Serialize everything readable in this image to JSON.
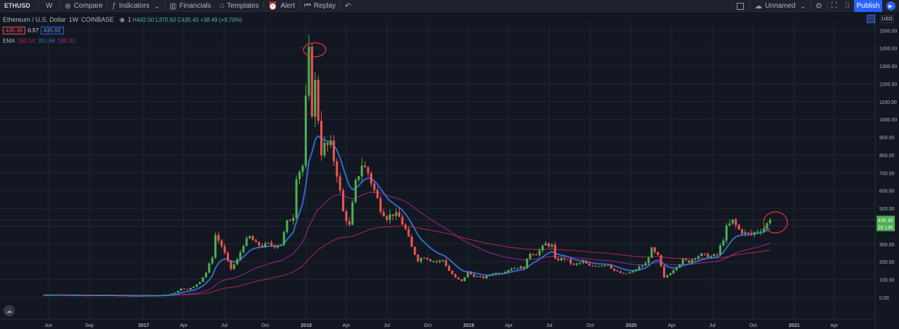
{
  "toolbar": {
    "symbol": "ETHUSD",
    "interval": "W",
    "compare": "Compare",
    "indicators": "Indicators",
    "financials": "Financials",
    "templates": "Templates",
    "alert": "Alert",
    "replay": "Replay",
    "layout_name": "Unnamed",
    "publish": "Publish"
  },
  "legend": {
    "title": "Ethereum / U.S. Dollar",
    "interval": "1W",
    "exchange": "COINBASE",
    "ohlc": "H442.00  L370.50  C435.40  +38.49 (+9.70%)",
    "open_prefix": "1",
    "bid": "435.35",
    "spread": "0.57",
    "ask": "435.92",
    "ema_label": "EMA",
    "ema_values": [
      "260.14",
      "351.68",
      "288.33"
    ]
  },
  "axis": {
    "currency": "USD",
    "last_price": "435.40",
    "countdown": "2d 14h"
  },
  "colors": {
    "up": "#4caf50",
    "down": "#ef5350",
    "ema_blue": "#2e6cc9",
    "ema_purple": "#9c2794",
    "ema_red": "#b02a45",
    "background": "#131722",
    "grid": "#232733",
    "annotation": "#e53935"
  },
  "chart_data": {
    "type": "candlestick",
    "title": "Ethereum / U.S. Dollar 1W COINBASE",
    "ylim": [
      0,
      1500
    ],
    "y_ticks": [
      "0.00",
      "100.00",
      "200.00",
      "300.00",
      "400.00",
      "500.00",
      "600.00",
      "700.00",
      "800.00",
      "900.00",
      "1000.00",
      "1100.00",
      "1200.00",
      "1300.00",
      "1400.00",
      "1500.00"
    ],
    "x_ticks": [
      "Jun",
      "Sep",
      "2017",
      "Apr",
      "Jul",
      "Oct",
      "2018",
      "Apr",
      "Jul",
      "Oct",
      "2019",
      "Apr",
      "Jul",
      "Oct",
      "2020",
      "Apr",
      "Jul",
      "Oct",
      "2021",
      "Apr"
    ],
    "x_tick_bold": [
      "2017",
      "2018",
      "2019",
      "2020",
      "2021"
    ],
    "x_tick_dates": [
      "2016-06-01",
      "2016-09-01",
      "2017-01-01",
      "2017-04-01",
      "2017-07-01",
      "2017-10-01",
      "2018-01-01",
      "2018-04-01",
      "2018-07-01",
      "2018-10-01",
      "2019-01-01",
      "2019-04-01",
      "2019-07-01",
      "2019-10-01",
      "2020-01-01",
      "2020-04-01",
      "2020-07-01",
      "2020-10-01",
      "2021-01-01",
      "2021-04-01"
    ],
    "closes": [
      {
        "date": "2016-05-22",
        "c": 13
      },
      {
        "date": "2016-06-19",
        "c": 14
      },
      {
        "date": "2016-07-24",
        "c": 12
      },
      {
        "date": "2016-08-21",
        "c": 11
      },
      {
        "date": "2016-09-18",
        "c": 12
      },
      {
        "date": "2016-10-16",
        "c": 12
      },
      {
        "date": "2016-11-13",
        "c": 10
      },
      {
        "date": "2016-12-11",
        "c": 8
      },
      {
        "date": "2017-01-08",
        "c": 10
      },
      {
        "date": "2017-02-05",
        "c": 11
      },
      {
        "date": "2017-02-26",
        "c": 16
      },
      {
        "date": "2017-03-12",
        "c": 28
      },
      {
        "date": "2017-03-26",
        "c": 50
      },
      {
        "date": "2017-04-09",
        "c": 45
      },
      {
        "date": "2017-04-23",
        "c": 60
      },
      {
        "date": "2017-05-07",
        "c": 90
      },
      {
        "date": "2017-05-21",
        "c": 140
      },
      {
        "date": "2017-06-04",
        "c": 230
      },
      {
        "date": "2017-06-11",
        "c": 350
      },
      {
        "date": "2017-06-25",
        "c": 290
      },
      {
        "date": "2017-07-09",
        "c": 200
      },
      {
        "date": "2017-07-16",
        "c": 160
      },
      {
        "date": "2017-07-30",
        "c": 210
      },
      {
        "date": "2017-08-13",
        "c": 300
      },
      {
        "date": "2017-08-27",
        "c": 340
      },
      {
        "date": "2017-09-10",
        "c": 300
      },
      {
        "date": "2017-09-24",
        "c": 290
      },
      {
        "date": "2017-10-08",
        "c": 300
      },
      {
        "date": "2017-10-22",
        "c": 290
      },
      {
        "date": "2017-11-05",
        "c": 300
      },
      {
        "date": "2017-11-19",
        "c": 420
      },
      {
        "date": "2017-12-03",
        "c": 460
      },
      {
        "date": "2017-12-10",
        "c": 690
      },
      {
        "date": "2017-12-24",
        "c": 740
      },
      {
        "date": "2017-12-31",
        "c": 1100
      },
      {
        "date": "2018-01-07",
        "c": 1360
      },
      {
        "date": "2018-01-14",
        "c": 1050
      },
      {
        "date": "2018-01-21",
        "c": 1200
      },
      {
        "date": "2018-02-04",
        "c": 820
      },
      {
        "date": "2018-02-11",
        "c": 850
      },
      {
        "date": "2018-02-25",
        "c": 850
      },
      {
        "date": "2018-03-11",
        "c": 700
      },
      {
        "date": "2018-03-25",
        "c": 480
      },
      {
        "date": "2018-04-08",
        "c": 400
      },
      {
        "date": "2018-04-22",
        "c": 640
      },
      {
        "date": "2018-05-06",
        "c": 750
      },
      {
        "date": "2018-05-20",
        "c": 700
      },
      {
        "date": "2018-06-03",
        "c": 600
      },
      {
        "date": "2018-06-17",
        "c": 500
      },
      {
        "date": "2018-07-01",
        "c": 450
      },
      {
        "date": "2018-07-15",
        "c": 470
      },
      {
        "date": "2018-07-29",
        "c": 450
      },
      {
        "date": "2018-08-12",
        "c": 380
      },
      {
        "date": "2018-08-26",
        "c": 280
      },
      {
        "date": "2018-09-09",
        "c": 210
      },
      {
        "date": "2018-09-23",
        "c": 230
      },
      {
        "date": "2018-10-07",
        "c": 210
      },
      {
        "date": "2018-10-21",
        "c": 200
      },
      {
        "date": "2018-11-04",
        "c": 210
      },
      {
        "date": "2018-11-18",
        "c": 150
      },
      {
        "date": "2018-12-02",
        "c": 110
      },
      {
        "date": "2018-12-16",
        "c": 90
      },
      {
        "date": "2018-12-30",
        "c": 140
      },
      {
        "date": "2019-01-13",
        "c": 120
      },
      {
        "date": "2019-02-03",
        "c": 110
      },
      {
        "date": "2019-02-24",
        "c": 135
      },
      {
        "date": "2019-03-17",
        "c": 140
      },
      {
        "date": "2019-04-07",
        "c": 165
      },
      {
        "date": "2019-05-05",
        "c": 170
      },
      {
        "date": "2019-05-19",
        "c": 250
      },
      {
        "date": "2019-06-02",
        "c": 245
      },
      {
        "date": "2019-06-23",
        "c": 300
      },
      {
        "date": "2019-07-07",
        "c": 290
      },
      {
        "date": "2019-07-14",
        "c": 210
      },
      {
        "date": "2019-08-04",
        "c": 220
      },
      {
        "date": "2019-08-25",
        "c": 180
      },
      {
        "date": "2019-09-15",
        "c": 200
      },
      {
        "date": "2019-09-29",
        "c": 175
      },
      {
        "date": "2019-10-20",
        "c": 180
      },
      {
        "date": "2019-11-10",
        "c": 185
      },
      {
        "date": "2019-11-24",
        "c": 150
      },
      {
        "date": "2019-12-15",
        "c": 130
      },
      {
        "date": "2020-01-05",
        "c": 145
      },
      {
        "date": "2020-01-19",
        "c": 170
      },
      {
        "date": "2020-02-02",
        "c": 190
      },
      {
        "date": "2020-02-16",
        "c": 270
      },
      {
        "date": "2020-03-01",
        "c": 230
      },
      {
        "date": "2020-03-15",
        "c": 110
      },
      {
        "date": "2020-03-29",
        "c": 140
      },
      {
        "date": "2020-04-12",
        "c": 175
      },
      {
        "date": "2020-04-26",
        "c": 210
      },
      {
        "date": "2020-05-10",
        "c": 200
      },
      {
        "date": "2020-05-24",
        "c": 230
      },
      {
        "date": "2020-06-07",
        "c": 240
      },
      {
        "date": "2020-06-28",
        "c": 230
      },
      {
        "date": "2020-07-12",
        "c": 240
      },
      {
        "date": "2020-07-26",
        "c": 330
      },
      {
        "date": "2020-08-02",
        "c": 390
      },
      {
        "date": "2020-08-16",
        "c": 430
      },
      {
        "date": "2020-08-30",
        "c": 380
      },
      {
        "date": "2020-09-13",
        "c": 360
      },
      {
        "date": "2020-09-27",
        "c": 355
      },
      {
        "date": "2020-10-11",
        "c": 375
      },
      {
        "date": "2020-10-25",
        "c": 390
      },
      {
        "date": "2020-11-08",
        "c": 435.4
      }
    ],
    "ema_blue_label": "351.68",
    "ema_purple_label": "288.33",
    "ema_red_label": "260.14",
    "annotations": [
      "circle at 2018 peak",
      "circle at latest candle"
    ]
  }
}
